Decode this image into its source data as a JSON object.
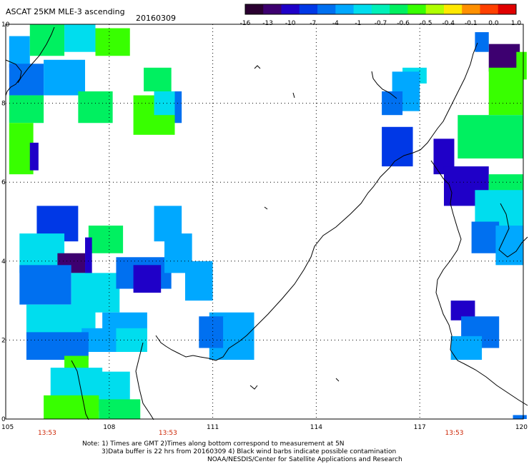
{
  "header": {
    "title": "ASCAT 25KM MLE-3 ascending",
    "date": "20160309"
  },
  "colorbar": {
    "colors": [
      "#2a0030",
      "#3d0070",
      "#1f00c8",
      "#0038e6",
      "#0070f0",
      "#00a8ff",
      "#00ddee",
      "#00f0b8",
      "#00f060",
      "#38ff00",
      "#b0ff00",
      "#ffe800",
      "#ff9000",
      "#ff4000",
      "#e00000"
    ],
    "labels": [
      "-16",
      "-13",
      "-10",
      "-7",
      "-4",
      "-1",
      "-0.7",
      "-0.6",
      "-0.5",
      "-0.4",
      "-0.1",
      "0.0",
      "1.0"
    ]
  },
  "axes": {
    "lon_ticks": [
      "105",
      "108",
      "111",
      "114",
      "117",
      "120"
    ],
    "lat_ticks": [
      "0",
      "2",
      "4",
      "6",
      "8",
      "10"
    ],
    "lon_range": [
      105,
      120
    ],
    "lat_range": [
      0,
      10
    ],
    "grid": true
  },
  "pass_times": [
    {
      "label": "13:53",
      "lon": 106.2
    },
    {
      "label": "13:53",
      "lon": 109.7
    },
    {
      "label": "13:53",
      "lon": 118.0
    }
  ],
  "footer": {
    "line1": "Note: 1) Times are GMT 2)Times along bottom correspond to measurement at 5N",
    "line2": "3)Data buffer is 22 hrs from 20160309 4) Black wind barbs indicate possible contamination",
    "line3": "NOAA/NESDIS/Center for Satellite Applications and Research"
  },
  "swaths": [
    {
      "lon": 105.1,
      "lat": 9.7,
      "w": 0.6,
      "h": 0.8,
      "color": "#00a8ff"
    },
    {
      "lon": 105.7,
      "lat": 10.0,
      "w": 1.0,
      "h": 0.8,
      "color": "#00f060"
    },
    {
      "lon": 106.7,
      "lat": 10.0,
      "w": 0.9,
      "h": 0.7,
      "color": "#00ddee"
    },
    {
      "lon": 107.6,
      "lat": 9.9,
      "w": 1.0,
      "h": 0.7,
      "color": "#38ff00"
    },
    {
      "lon": 105.1,
      "lat": 9.0,
      "w": 1.0,
      "h": 0.8,
      "color": "#0070f0"
    },
    {
      "lon": 106.1,
      "lat": 9.1,
      "w": 1.2,
      "h": 0.9,
      "color": "#00a8ff"
    },
    {
      "lon": 107.1,
      "lat": 8.3,
      "w": 1.0,
      "h": 0.8,
      "color": "#00f060"
    },
    {
      "lon": 105.1,
      "lat": 8.2,
      "w": 1.0,
      "h": 0.7,
      "color": "#00f060"
    },
    {
      "lon": 105.1,
      "lat": 7.5,
      "w": 0.7,
      "h": 1.3,
      "color": "#38ff00"
    },
    {
      "lon": 105.7,
      "lat": 7.0,
      "w": 0.25,
      "h": 0.7,
      "color": "#1f00c8"
    },
    {
      "lon": 109.0,
      "lat": 8.9,
      "w": 0.8,
      "h": 0.6,
      "color": "#00f060"
    },
    {
      "lon": 108.7,
      "lat": 8.2,
      "w": 1.2,
      "h": 1.0,
      "color": "#38ff00"
    },
    {
      "lon": 109.3,
      "lat": 8.3,
      "w": 0.6,
      "h": 0.6,
      "color": "#00ddee"
    },
    {
      "lon": 109.9,
      "lat": 8.3,
      "w": 0.2,
      "h": 0.8,
      "color": "#0070f0"
    },
    {
      "lon": 105.9,
      "lat": 5.4,
      "w": 1.2,
      "h": 0.9,
      "color": "#0038e6"
    },
    {
      "lon": 105.4,
      "lat": 4.7,
      "w": 1.3,
      "h": 1.0,
      "color": "#00ddee"
    },
    {
      "lon": 106.5,
      "lat": 4.2,
      "w": 0.8,
      "h": 0.5,
      "color": "#3d0070"
    },
    {
      "lon": 107.4,
      "lat": 4.9,
      "w": 1.0,
      "h": 0.7,
      "color": "#00f060"
    },
    {
      "lon": 107.3,
      "lat": 4.6,
      "w": 0.2,
      "h": 1.0,
      "color": "#1f00c8"
    },
    {
      "lon": 105.4,
      "lat": 3.9,
      "w": 1.5,
      "h": 1.0,
      "color": "#0070f0"
    },
    {
      "lon": 106.9,
      "lat": 3.7,
      "w": 1.4,
      "h": 1.0,
      "color": "#00ddee"
    },
    {
      "lon": 108.2,
      "lat": 4.1,
      "w": 1.6,
      "h": 0.8,
      "color": "#0070f0"
    },
    {
      "lon": 108.7,
      "lat": 3.9,
      "w": 0.8,
      "h": 0.7,
      "color": "#1f00c8"
    },
    {
      "lon": 105.6,
      "lat": 2.9,
      "w": 2.0,
      "h": 0.8,
      "color": "#00ddee"
    },
    {
      "lon": 107.2,
      "lat": 2.3,
      "w": 1.2,
      "h": 0.6,
      "color": "#00a8ff"
    },
    {
      "lon": 105.6,
      "lat": 2.2,
      "w": 1.8,
      "h": 0.7,
      "color": "#0070f0"
    },
    {
      "lon": 106.7,
      "lat": 1.6,
      "w": 0.7,
      "h": 0.5,
      "color": "#38ff00"
    },
    {
      "lon": 107.8,
      "lat": 2.7,
      "w": 1.3,
      "h": 0.7,
      "color": "#00a8ff"
    },
    {
      "lon": 108.2,
      "lat": 2.3,
      "w": 0.9,
      "h": 0.6,
      "color": "#00ddee"
    },
    {
      "lon": 109.3,
      "lat": 5.4,
      "w": 0.8,
      "h": 0.9,
      "color": "#00a8ff"
    },
    {
      "lon": 109.6,
      "lat": 4.7,
      "w": 0.8,
      "h": 1.0,
      "color": "#00a8ff"
    },
    {
      "lon": 110.2,
      "lat": 4.0,
      "w": 0.8,
      "h": 1.0,
      "color": "#00a8ff"
    },
    {
      "lon": 110.9,
      "lat": 2.7,
      "w": 1.3,
      "h": 1.2,
      "color": "#00a8ff"
    },
    {
      "lon": 110.6,
      "lat": 2.6,
      "w": 0.8,
      "h": 0.8,
      "color": "#0070f0"
    },
    {
      "lon": 111.3,
      "lat": 2.6,
      "w": 0.8,
      "h": 0.8,
      "color": "#00a8ff"
    },
    {
      "lon": 106.3,
      "lat": 1.3,
      "w": 1.5,
      "h": 1.0,
      "color": "#00ddee"
    },
    {
      "lon": 107.6,
      "lat": 1.2,
      "w": 1.0,
      "h": 1.0,
      "color": "#00ddee"
    },
    {
      "lon": 106.1,
      "lat": 0.6,
      "w": 1.6,
      "h": 0.6,
      "color": "#38ff00"
    },
    {
      "lon": 107.7,
      "lat": 0.5,
      "w": 1.2,
      "h": 0.5,
      "color": "#00f060"
    },
    {
      "lon": 116.5,
      "lat": 8.9,
      "w": 0.7,
      "h": 0.4,
      "color": "#00ddee"
    },
    {
      "lon": 116.2,
      "lat": 8.8,
      "w": 0.8,
      "h": 1.0,
      "color": "#00a8ff"
    },
    {
      "lon": 115.9,
      "lat": 8.3,
      "w": 0.6,
      "h": 0.6,
      "color": "#0070f0"
    },
    {
      "lon": 115.9,
      "lat": 7.4,
      "w": 0.9,
      "h": 1.0,
      "color": "#0038e6"
    },
    {
      "lon": 119.0,
      "lat": 9.5,
      "w": 0.9,
      "h": 0.7,
      "color": "#3d0070"
    },
    {
      "lon": 118.6,
      "lat": 9.8,
      "w": 0.4,
      "h": 0.5,
      "color": "#0070f0"
    },
    {
      "lon": 119.8,
      "lat": 9.3,
      "w": 0.3,
      "h": 0.7,
      "color": "#38ff00"
    },
    {
      "lon": 119.0,
      "lat": 8.9,
      "w": 1.0,
      "h": 1.2,
      "color": "#38ff00"
    },
    {
      "lon": 118.1,
      "lat": 7.7,
      "w": 1.9,
      "h": 1.1,
      "color": "#00f060"
    },
    {
      "lon": 117.4,
      "lat": 7.1,
      "w": 0.6,
      "h": 0.9,
      "color": "#1f00c8"
    },
    {
      "lon": 117.7,
      "lat": 6.4,
      "w": 1.3,
      "h": 1.0,
      "color": "#1f00c8"
    },
    {
      "lon": 119.0,
      "lat": 6.2,
      "w": 1.0,
      "h": 0.7,
      "color": "#00f060"
    },
    {
      "lon": 118.6,
      "lat": 5.8,
      "w": 1.4,
      "h": 1.1,
      "color": "#00ddee"
    },
    {
      "lon": 118.5,
      "lat": 5.0,
      "w": 0.8,
      "h": 0.8,
      "color": "#0070f0"
    },
    {
      "lon": 119.2,
      "lat": 4.9,
      "w": 0.8,
      "h": 1.0,
      "color": "#00a8ff"
    },
    {
      "lon": 117.9,
      "lat": 3.0,
      "w": 0.7,
      "h": 0.5,
      "color": "#1f00c8"
    },
    {
      "lon": 118.2,
      "lat": 2.6,
      "w": 1.1,
      "h": 0.8,
      "color": "#0070f0"
    },
    {
      "lon": 117.9,
      "lat": 2.1,
      "w": 0.9,
      "h": 0.6,
      "color": "#00a8ff"
    },
    {
      "lon": 119.7,
      "lat": 0.1,
      "w": 0.4,
      "h": 0.1,
      "color": "#0070f0"
    }
  ]
}
